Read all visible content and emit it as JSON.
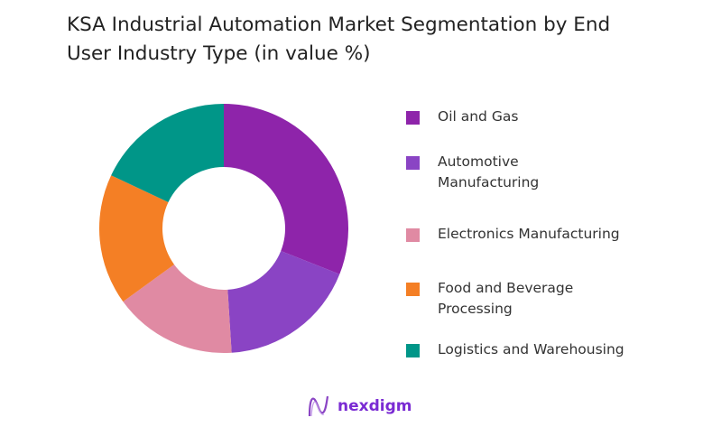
{
  "chart_data": {
    "type": "pie",
    "donut": true,
    "title": "KSA Industrial Automation Market Segmentation by End User Industry Type (in value %)",
    "categories": [
      "Oil and Gas",
      "Automotive Manufacturing",
      "Electronics Manufacturing",
      "Food and Beverage Processing",
      "Logistics and Warehousing"
    ],
    "values": [
      31,
      18,
      16,
      17,
      18
    ],
    "colors": [
      "#8e24aa",
      "#8a44c4",
      "#e08aa3",
      "#f47f25",
      "#009688"
    ],
    "legend_position": "right"
  },
  "brand": {
    "name": "nexdigm",
    "color": "#7a2bd3"
  }
}
